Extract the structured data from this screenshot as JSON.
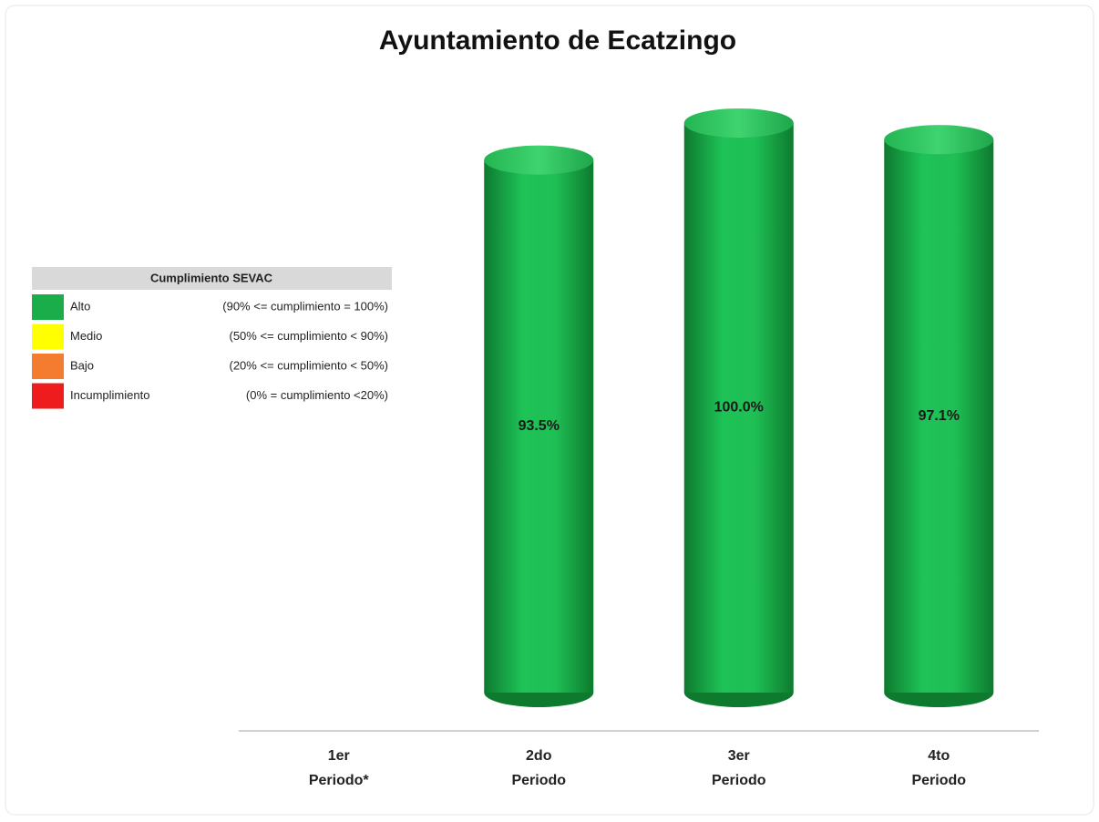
{
  "chart_data": {
    "type": "bar",
    "title": "Ayuntamiento de Ecatzingo",
    "categories": [
      [
        "1er",
        "Periodo*"
      ],
      [
        "2do",
        "Periodo"
      ],
      [
        "3er",
        "Periodo"
      ],
      [
        "4to",
        "Periodo"
      ]
    ],
    "values": [
      null,
      93.5,
      100,
      97.1
    ],
    "value_labels": [
      null,
      "93.5%",
      "100.0%",
      "97.1%"
    ],
    "color": "#1aad4a",
    "ylim": [
      0,
      100
    ],
    "legend": {
      "title": "Cumplimiento SEVAC",
      "items": [
        {
          "name": "Alto",
          "color": "#1aad4a",
          "range": "(90% <= cumplimiento = 100%)"
        },
        {
          "name": "Medio",
          "color": "#ffff00",
          "range": "(50% <= cumplimiento < 90%)"
        },
        {
          "name": "Bajo",
          "color": "#f47c30",
          "range": "(20% <= cumplimiento < 50%)"
        },
        {
          "name": "Incumplimiento",
          "color": "#ee1c1c",
          "range": "(0% = cumplimiento <20%)"
        }
      ]
    }
  }
}
